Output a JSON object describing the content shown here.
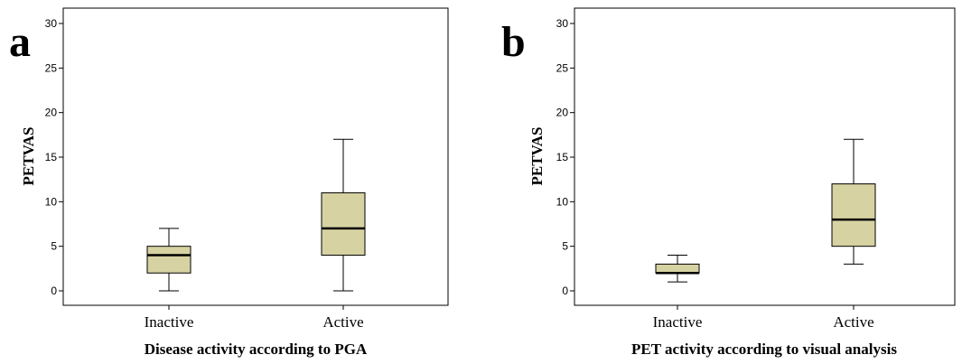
{
  "chart_data": [
    {
      "type": "box",
      "panel_label": "a",
      "ylabel": "PETVAS",
      "xlabel": "Disease activity according to PGA",
      "ylim": [
        -2,
        31
      ],
      "yticks": [
        0,
        5,
        10,
        15,
        20,
        25,
        30
      ],
      "categories": [
        "Inactive",
        "Active"
      ],
      "boxes": [
        {
          "category": "Inactive",
          "min": 0,
          "q1": 2,
          "median": 4,
          "q3": 5,
          "max": 7
        },
        {
          "category": "Active",
          "min": 0,
          "q1": 4,
          "median": 7,
          "q3": 11,
          "max": 17
        }
      ],
      "box_color": "#d6d2a2",
      "grid": false
    },
    {
      "type": "box",
      "panel_label": "b",
      "ylabel": "PETVAS",
      "xlabel": "PET activity according to visual analysis",
      "ylim": [
        -2,
        31
      ],
      "yticks": [
        0,
        5,
        10,
        15,
        20,
        25,
        30
      ],
      "categories": [
        "Inactive",
        "Active"
      ],
      "boxes": [
        {
          "category": "Inactive",
          "min": 1,
          "q1": 2,
          "median": 2,
          "q3": 3,
          "max": 4
        },
        {
          "category": "Active",
          "min": 3,
          "q1": 5,
          "median": 8,
          "q3": 12,
          "max": 17
        }
      ],
      "box_color": "#d6d2a2",
      "grid": false
    }
  ]
}
